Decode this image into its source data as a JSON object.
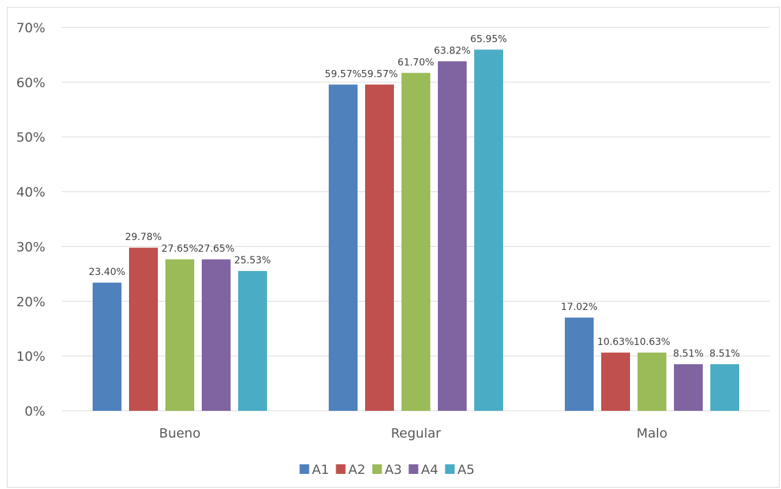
{
  "chart_data": {
    "type": "bar",
    "categories": [
      "Bueno",
      "Regular",
      "Malo"
    ],
    "series": [
      {
        "name": "A1",
        "color": "#4f81bd",
        "values": [
          23.4,
          59.57,
          17.02
        ],
        "labels": [
          "23.40%",
          "59.57%",
          "17.02%"
        ]
      },
      {
        "name": "A2",
        "color": "#c0504d",
        "values": [
          29.78,
          59.57,
          10.63
        ],
        "labels": [
          "29.78%",
          "59.57%",
          "10.63%"
        ]
      },
      {
        "name": "A3",
        "color": "#9bbb59",
        "values": [
          27.65,
          61.7,
          10.63
        ],
        "labels": [
          "27.65%",
          "61.70%",
          "10.63%"
        ]
      },
      {
        "name": "A4",
        "color": "#8064a2",
        "values": [
          27.65,
          63.82,
          8.51
        ],
        "labels": [
          "27.65%",
          "63.82%",
          "8.51%"
        ]
      },
      {
        "name": "A5",
        "color": "#4bacc6",
        "values": [
          25.53,
          65.95,
          8.51
        ],
        "labels": [
          "25.53%",
          "65.95%",
          "8.51%"
        ]
      }
    ],
    "yticks": [
      {
        "value": 0,
        "label": "0%"
      },
      {
        "value": 10,
        "label": "10%"
      },
      {
        "value": 20,
        "label": "20%"
      },
      {
        "value": 30,
        "label": "30%"
      },
      {
        "value": 40,
        "label": "40%"
      },
      {
        "value": 50,
        "label": "50%"
      },
      {
        "value": 60,
        "label": "60%"
      },
      {
        "value": 70,
        "label": "70%"
      }
    ],
    "ylim": [
      0,
      70
    ],
    "grid": true,
    "legend_position": "bottom",
    "gridline_color": "#d9d9d9",
    "axis_color": "#d9d9d9"
  }
}
